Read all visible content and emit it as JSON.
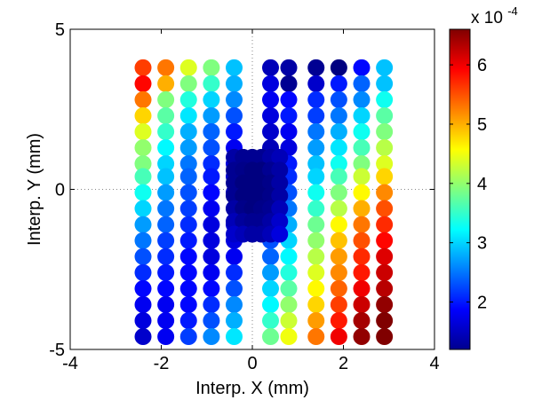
{
  "chart_data": {
    "type": "scatter",
    "xlabel": "Interp. X (mm)",
    "ylabel": "Interp. Y (mm)",
    "xlim": [
      -4,
      4
    ],
    "ylim": [
      -5,
      5
    ],
    "xticks": [
      "-4",
      "-2",
      "0",
      "2",
      "4"
    ],
    "yticks": [
      "-5",
      "0",
      "5"
    ],
    "zero_lines": "dotted",
    "colorbar": {
      "colormap": "jet",
      "multiplier_label": "x 10",
      "multiplier_exponent": "-4",
      "range": [
        1.2,
        6.6
      ],
      "ticks": [
        "2",
        "3",
        "4",
        "5",
        "6"
      ]
    },
    "grid_cols_x": [
      -2.4,
      -1.9,
      -1.4,
      -0.9,
      -0.4,
      0.4,
      0.8,
      1.4,
      1.9,
      2.4,
      2.9
    ],
    "grid_rows_y": [
      3.8,
      3.3,
      2.8,
      2.3,
      1.8,
      1.3,
      0.8,
      0.4,
      -0.1,
      -0.6,
      -1.1,
      -1.6,
      -2.1,
      -2.6,
      -3.1,
      -3.6,
      -4.1,
      -4.6
    ],
    "grid_values": [
      [
        5.6,
        5.3,
        4.4,
        3.9,
        2.9,
        1.5,
        1.4,
        1.3,
        1.2,
        1.9,
        2.9
      ],
      [
        5.9,
        5.0,
        3.9,
        3.5,
        2.8,
        1.7,
        1.3,
        1.6,
        2.0,
        2.4,
        2.9
      ],
      [
        5.3,
        3.9,
        3.4,
        3.0,
        2.6,
        1.8,
        1.9,
        2.1,
        2.3,
        2.6,
        3.3
      ],
      [
        4.8,
        3.7,
        3.1,
        2.7,
        2.3,
        1.7,
        2.0,
        2.2,
        2.5,
        3.0,
        3.7
      ],
      [
        4.4,
        3.5,
        2.8,
        2.4,
        2.0,
        1.6,
        1.8,
        2.5,
        2.8,
        3.3,
        3.9
      ],
      [
        4.0,
        3.2,
        2.7,
        2.3,
        1.8,
        1.5,
        1.7,
        2.7,
        3.1,
        3.6,
        4.2
      ],
      [
        3.9,
        3.0,
        2.5,
        2.1,
        1.7,
        1.6,
        2.0,
        2.9,
        3.3,
        3.9,
        4.4
      ],
      [
        3.6,
        2.9,
        2.4,
        2.0,
        1.6,
        1.6,
        2.1,
        3.0,
        3.6,
        4.3,
        4.8
      ],
      [
        3.3,
        2.7,
        2.3,
        1.9,
        1.5,
        1.8,
        2.3,
        3.3,
        3.9,
        4.6,
        5.2
      ],
      [
        3.0,
        2.5,
        2.2,
        1.8,
        1.5,
        2.0,
        2.5,
        3.5,
        4.2,
        5.0,
        5.5
      ],
      [
        2.7,
        2.4,
        2.1,
        1.7,
        1.6,
        2.1,
        2.8,
        3.8,
        4.6,
        5.3,
        5.7
      ],
      [
        2.5,
        2.2,
        2.0,
        1.7,
        1.7,
        2.3,
        3.0,
        4.0,
        4.9,
        5.5,
        5.9
      ],
      [
        2.3,
        2.1,
        1.9,
        1.7,
        1.8,
        2.4,
        3.2,
        4.2,
        5.1,
        5.7,
        6.1
      ],
      [
        2.1,
        2.0,
        1.9,
        1.8,
        2.1,
        2.7,
        3.4,
        4.4,
        5.2,
        5.8,
        6.2
      ],
      [
        1.9,
        1.9,
        1.9,
        1.9,
        2.3,
        3.0,
        3.7,
        4.6,
        5.4,
        6.0,
        6.3
      ],
      [
        1.8,
        1.8,
        1.9,
        2.1,
        2.6,
        3.2,
        4.0,
        4.8,
        5.6,
        6.2,
        6.5
      ],
      [
        1.7,
        1.8,
        2.0,
        2.3,
        2.8,
        3.5,
        4.3,
        5.1,
        5.8,
        6.4,
        6.6
      ],
      [
        1.6,
        1.8,
        2.2,
        2.6,
        3.1,
        3.8,
        4.5,
        5.3,
        6.0,
        6.5,
        6.6
      ]
    ],
    "center_cluster_x": [
      -0.4,
      -0.2,
      0,
      0.2,
      0.4,
      0.6
    ],
    "center_cluster_y": [
      1.0,
      0.6,
      0.2,
      -0.2,
      -0.6,
      -1.0,
      -1.4
    ],
    "center_cluster_values": [
      [
        1.4,
        1.3,
        1.3,
        1.3,
        1.4,
        1.5
      ],
      [
        1.3,
        1.25,
        1.2,
        1.2,
        1.3,
        1.4
      ],
      [
        1.3,
        1.2,
        1.2,
        1.2,
        1.25,
        1.4
      ],
      [
        1.3,
        1.2,
        1.2,
        1.2,
        1.25,
        1.4
      ],
      [
        1.4,
        1.25,
        1.2,
        1.25,
        1.3,
        1.5
      ],
      [
        1.5,
        1.35,
        1.3,
        1.3,
        1.4,
        1.6
      ],
      [
        1.6,
        1.5,
        1.4,
        1.4,
        1.5,
        1.7
      ]
    ]
  }
}
